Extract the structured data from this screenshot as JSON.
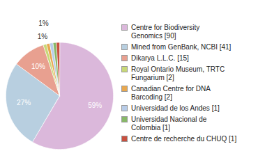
{
  "chart_data": {
    "type": "pie",
    "categories": [
      "Centre for Biodiversity\nGenomics [90]",
      "Mined from GenBank, NCBI [41]",
      "Dikarya L.L.C. [15]",
      "Royal Ontario Museum, TRTC\nFungarium [2]",
      "Canadian Centre for DNA\nBarcoding [2]",
      "Universidad de los Andes [1]",
      "Universidad Nacional de\nColombia [1]",
      "Centre de recherche du CHUQ [1]"
    ],
    "values": [
      59,
      27,
      10,
      1,
      1,
      1,
      1,
      1
    ],
    "value_labels": [
      "59%",
      "27%",
      "10%",
      "1%",
      "1%",
      null,
      null,
      null
    ],
    "colors": [
      "#dbb8db",
      "#b8cfe0",
      "#e8a090",
      "#c8d878",
      "#e8a850",
      "#b8cce8",
      "#88b868",
      "#c85040"
    ],
    "data_labels": true,
    "legend": "right"
  }
}
